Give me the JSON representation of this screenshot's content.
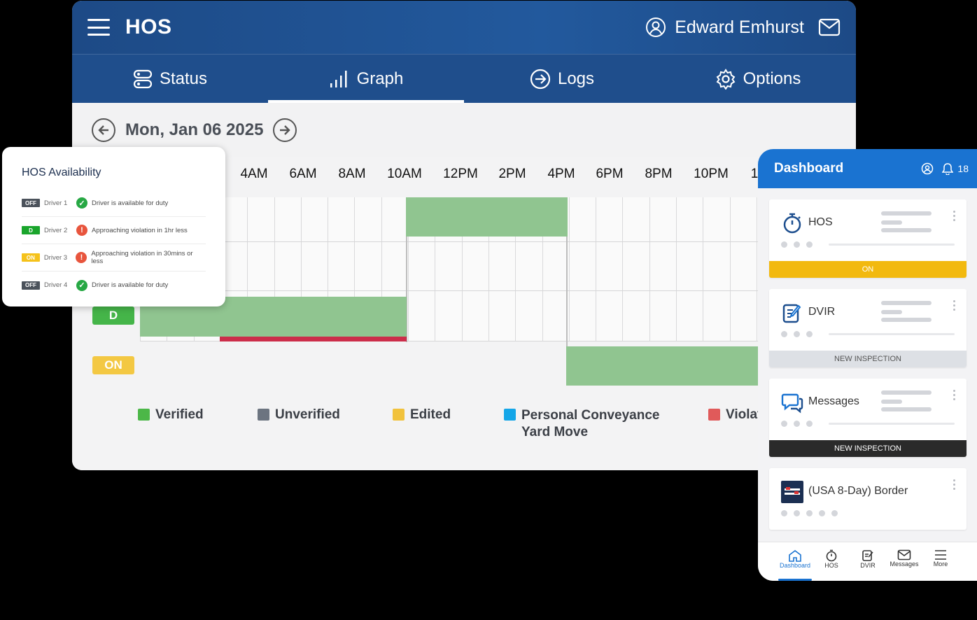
{
  "app": {
    "title": "HOS",
    "user_name": "Edward Emhurst",
    "icons": [
      "menu-icon",
      "user-icon",
      "mail-icon"
    ]
  },
  "tabs": [
    {
      "label": "Status",
      "icon": "status-icon",
      "active": false
    },
    {
      "label": "Graph",
      "icon": "graph-icon",
      "active": true
    },
    {
      "label": "Logs",
      "icon": "logs-icon",
      "active": false
    },
    {
      "label": "Options",
      "icon": "gear-icon",
      "active": false
    }
  ],
  "date": {
    "label": "Mon, Jan 06 2025"
  },
  "graph": {
    "hours": [
      "4AM",
      "6AM",
      "8AM",
      "10AM",
      "12PM",
      "2PM",
      "4PM",
      "6PM",
      "8PM",
      "10PM",
      "1"
    ],
    "rows": {
      "driving": "D",
      "on_duty": "ON"
    },
    "colors": {
      "segment": "#90c590",
      "violation": "#cc2d4a",
      "driving_badge": "#45b549",
      "on_badge": "#f3c843"
    },
    "legend": [
      {
        "label": "Verified",
        "color": "#4cb748"
      },
      {
        "label": "Unverified",
        "color": "#6c7480"
      },
      {
        "label": "Edited",
        "color": "#f1c23c"
      },
      {
        "label": "Personal Conveyance",
        "label2": "Yard Move",
        "color": "#14a6e8"
      },
      {
        "label": "Violat",
        "color": "#e05a5a"
      }
    ]
  },
  "availability": {
    "title": "HOS Availability",
    "rows": [
      {
        "status": "OFF",
        "status_color": "#4b525b",
        "driver": "Driver 1",
        "icon": "check-icon",
        "icon_color": "#27a844",
        "message": "Driver is available for duty"
      },
      {
        "status": "D",
        "status_color": "#1aa52c",
        "driver": "Driver 2",
        "icon": "alert-icon",
        "icon_color": "#e8553d",
        "message": "Approaching violation in 1hr less"
      },
      {
        "status": "ON",
        "status_color": "#f5c21b",
        "driver": "Driver 3",
        "icon": "alert-icon",
        "icon_color": "#e8553d",
        "message": "Approaching violation in 30mins or less"
      },
      {
        "status": "OFF",
        "status_color": "#4b525b",
        "driver": "Driver 4",
        "icon": "check-icon",
        "icon_color": "#27a844",
        "message": "Driver is available for duty"
      }
    ]
  },
  "phone": {
    "title": "Dashboard",
    "notification_count": "18",
    "cards": [
      {
        "label": "HOS",
        "icon": "stopwatch-icon",
        "bar_label": "ON",
        "bar_color": "#f2b90f",
        "bar_text_color": "#ffffff"
      },
      {
        "label": "DVIR",
        "icon": "edit-document-icon",
        "bar_label": "NEW INSPECTION",
        "bar_color": "#dde0e5",
        "bar_text_color": "#555555"
      },
      {
        "label": "Messages",
        "icon": "chat-icon",
        "bar_label": "NEW INSPECTION",
        "bar_color": "#2a2a2a",
        "bar_text_color": "#ffffff"
      },
      {
        "label": "(USA 8-Day) Border",
        "icon": "flag-icon"
      }
    ],
    "nav": [
      {
        "label": "Dashboard",
        "icon": "home-icon",
        "active": true
      },
      {
        "label": "HOS",
        "icon": "stopwatch-icon",
        "active": false
      },
      {
        "label": "DVIR",
        "icon": "edit-document-icon",
        "active": false
      },
      {
        "label": "Messages",
        "icon": "mail-icon",
        "active": false
      },
      {
        "label": "More",
        "icon": "menu-icon",
        "active": false
      }
    ]
  }
}
